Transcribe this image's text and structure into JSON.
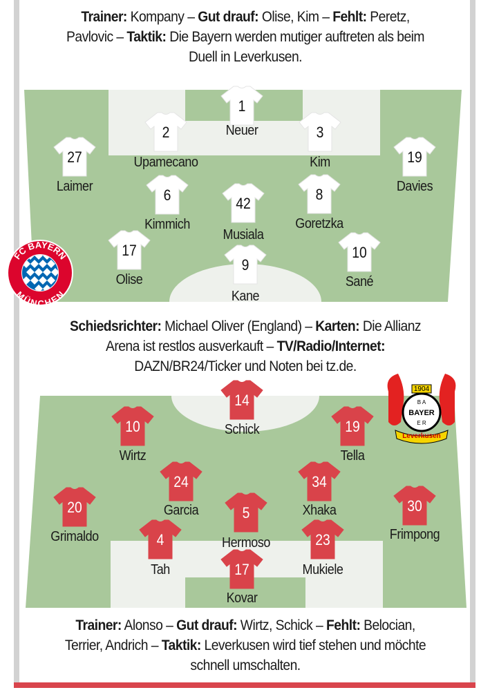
{
  "colors": {
    "pitch": "#a9c89b",
    "pitch_light": "#eef1ec",
    "home_shirt": "#ffffff",
    "away_shirt": "#d9434a",
    "rail": "#d2d2d2",
    "accent_red": "#d9454c"
  },
  "top_info": {
    "lines": [
      [
        {
          "b": "Trainer:"
        },
        {
          "t": " Kompany – "
        },
        {
          "b": "Gut drauf:"
        },
        {
          "t": " Olise, Kim – "
        },
        {
          "b": "Fehlt:"
        },
        {
          "t": " Peretz,"
        }
      ],
      [
        {
          "t": "Pavlovic – "
        },
        {
          "b": "Taktik:"
        },
        {
          "t": " Die Bayern werden mutiger auftreten als beim"
        }
      ],
      [
        {
          "t": "Duell in Leverkusen."
        }
      ]
    ]
  },
  "middle_info": {
    "lines": [
      [
        {
          "b": "Schiedsrichter:"
        },
        {
          "t": " Michael Oliver (England) – "
        },
        {
          "b": "Karten:"
        },
        {
          "t": " Die Allianz"
        }
      ],
      [
        {
          "t": "Arena ist restlos ausverkauft – "
        },
        {
          "b": "TV/Radio/Internet:"
        }
      ],
      [
        {
          "t": "DAZN/BR24/Ticker und Noten bei tz.de."
        }
      ]
    ]
  },
  "bottom_info": {
    "lines": [
      [
        {
          "b": "Trainer:"
        },
        {
          "t": " Alonso – "
        },
        {
          "b": "Gut drauf:"
        },
        {
          "t": " Wirtz, Schick – "
        },
        {
          "b": "Fehlt:"
        },
        {
          "t": " Belocian,"
        }
      ],
      [
        {
          "t": "Terrier, Andrich – "
        },
        {
          "b": "Taktik:"
        },
        {
          "t": " Leverkusen wird tief stehen und möchte"
        }
      ],
      [
        {
          "t": "schnell umschalten."
        }
      ]
    ]
  },
  "home_team": {
    "logo": "FC BAYERN MÜNCHEN",
    "players": [
      {
        "number": "1",
        "name": "Neuer"
      },
      {
        "number": "2",
        "name": "Upamecano"
      },
      {
        "number": "3",
        "name": "Kim"
      },
      {
        "number": "27",
        "name": "Laimer"
      },
      {
        "number": "19",
        "name": "Davies"
      },
      {
        "number": "6",
        "name": "Kimmich"
      },
      {
        "number": "42",
        "name": "Musiala"
      },
      {
        "number": "8",
        "name": "Goretzka"
      },
      {
        "number": "17",
        "name": "Olise"
      },
      {
        "number": "9",
        "name": "Kane"
      },
      {
        "number": "10",
        "name": "Sané"
      }
    ]
  },
  "away_team": {
    "logo": "1904 BAYER Leverkusen",
    "players": [
      {
        "number": "14",
        "name": "Schick"
      },
      {
        "number": "10",
        "name": "Wirtz"
      },
      {
        "number": "19",
        "name": "Tella"
      },
      {
        "number": "24",
        "name": "Garcia"
      },
      {
        "number": "34",
        "name": "Xhaka"
      },
      {
        "number": "20",
        "name": "Grimaldo"
      },
      {
        "number": "5",
        "name": "Hermoso"
      },
      {
        "number": "30",
        "name": "Frimpong"
      },
      {
        "number": "4",
        "name": "Tah"
      },
      {
        "number": "23",
        "name": "Mukiele"
      },
      {
        "number": "17",
        "name": "Kovar"
      }
    ]
  }
}
